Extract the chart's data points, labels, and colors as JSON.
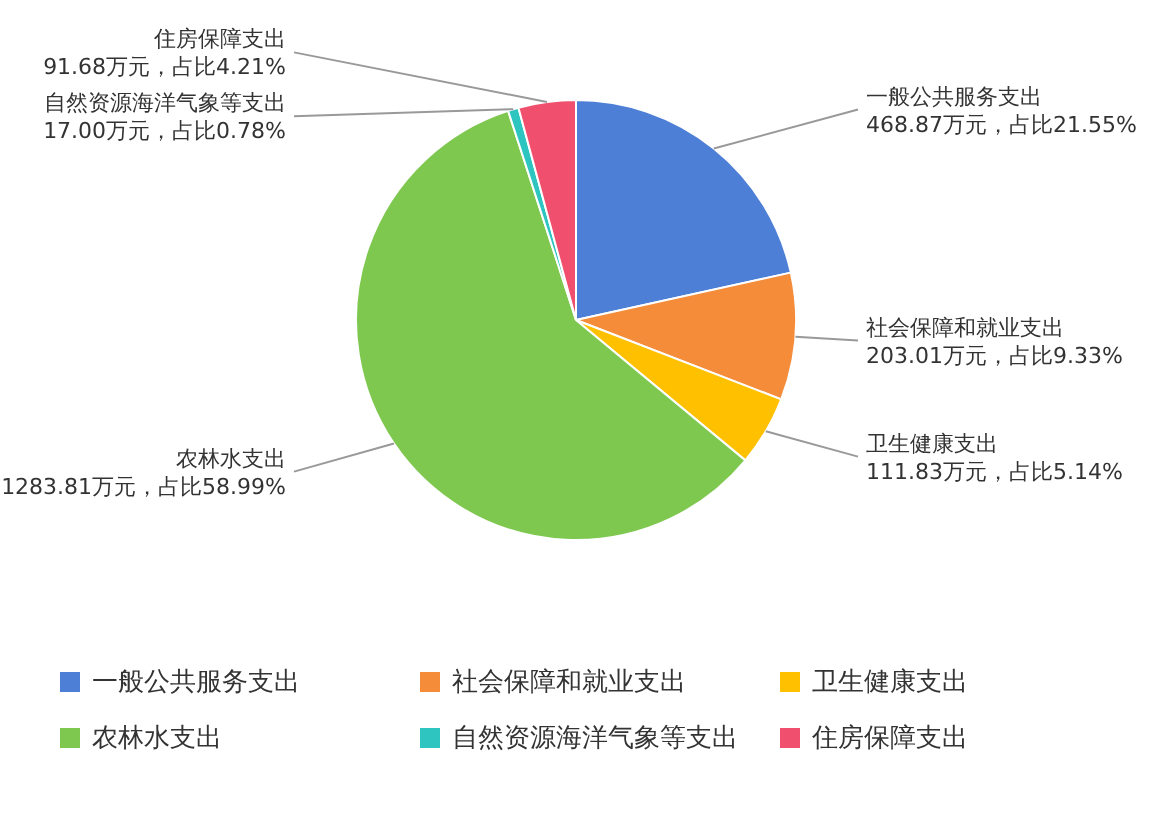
{
  "chart_data": {
    "type": "pie",
    "categories": [
      "一般公共服务支出",
      "社会保障和就业支出",
      "卫生健康支出",
      "农林水支出",
      "自然资源海洋气象等支出",
      "住房保障支出"
    ],
    "values": [
      468.87,
      203.01,
      111.83,
      1283.81,
      17.0,
      91.68
    ],
    "colors": [
      "#4e7fd6",
      "#f58c3a",
      "#ffc000",
      "#7ec850",
      "#2ec4c0",
      "#f0506e"
    ],
    "value_labels": [
      "468.87万元，占比21.55%",
      "203.01万元，占比9.33%",
      "111.83万元，占比5.14%",
      "1283.81万元，占比58.99%",
      "17.00万元，占比0.78%",
      "91.68万元，占比4.21%"
    ],
    "legend": "bottom"
  }
}
